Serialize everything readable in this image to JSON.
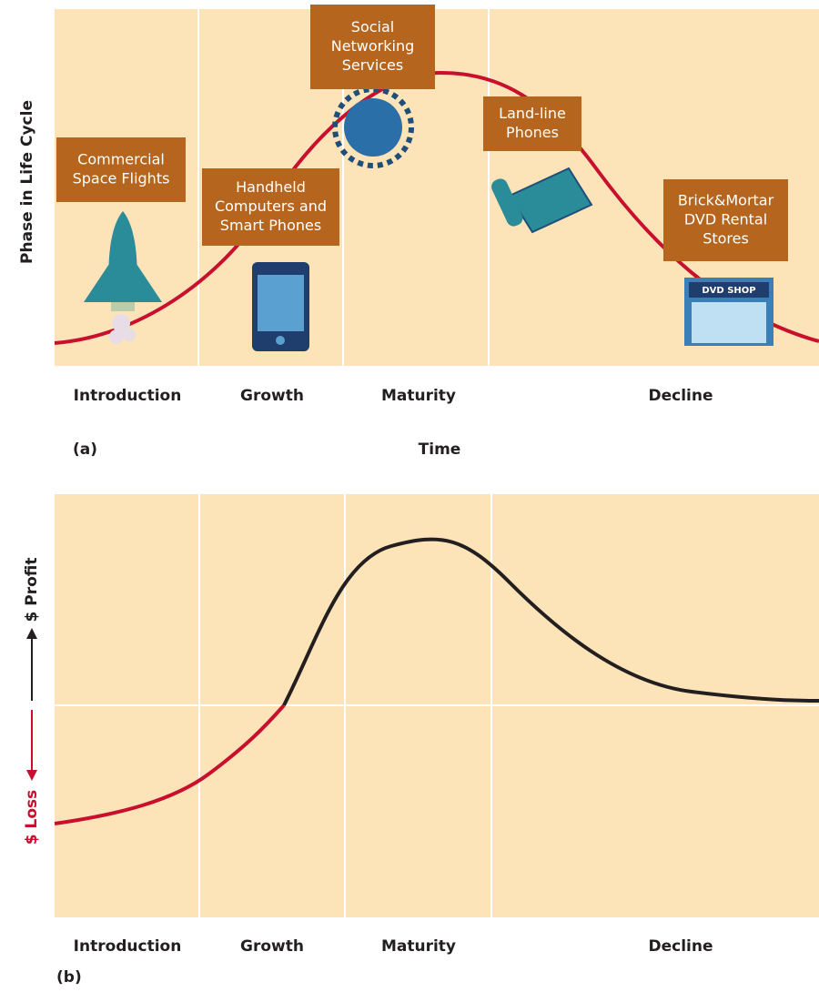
{
  "panel_a": {
    "y_axis_label": "Phase in Life Cycle",
    "phases": [
      "Introduction",
      "Growth",
      "Maturity",
      "Decline"
    ],
    "panel_label": "(a)",
    "x_axis_label": "Time",
    "callouts": [
      {
        "lines": [
          "Commercial",
          "Space Flights"
        ]
      },
      {
        "lines": [
          "Handheld",
          "Computers and",
          "Smart Phones"
        ]
      },
      {
        "lines": [
          "Social",
          "Networking",
          "Services"
        ]
      },
      {
        "lines": [
          "Land-line",
          "Phones"
        ]
      },
      {
        "lines": [
          "Brick&Mortar",
          "DVD Rental",
          "Stores"
        ]
      }
    ],
    "shop_sign": "DVD SHOP"
  },
  "panel_b": {
    "profit_label": "$ Profit",
    "loss_label": "$ Loss",
    "phases": [
      "Introduction",
      "Growth",
      "Maturity",
      "Decline"
    ],
    "panel_label": "(b)"
  }
}
